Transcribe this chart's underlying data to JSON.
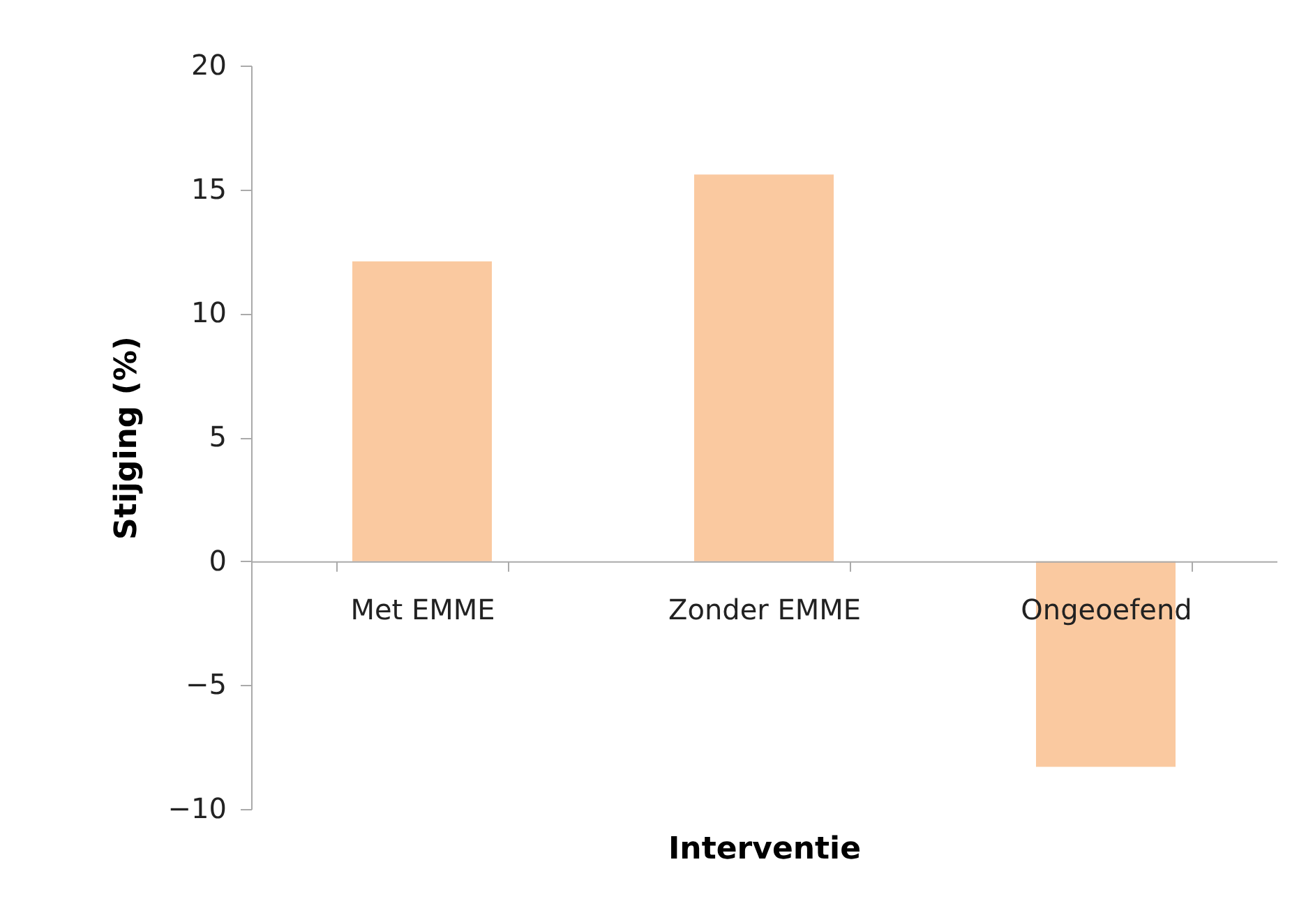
{
  "chart_data": {
    "type": "bar",
    "xlabel": "Interventie",
    "ylabel": "Stijging (%)",
    "categories": [
      "Met EMME",
      "Zonder EMME",
      "Ongeoefend"
    ],
    "values": [
      12.1,
      15.6,
      -8.3
    ],
    "color": "#fac9a0",
    "ylim": [
      -10,
      20
    ],
    "yticks": [
      -10,
      -5,
      0,
      5,
      10,
      15,
      20
    ],
    "grid": false,
    "legend": false
  }
}
